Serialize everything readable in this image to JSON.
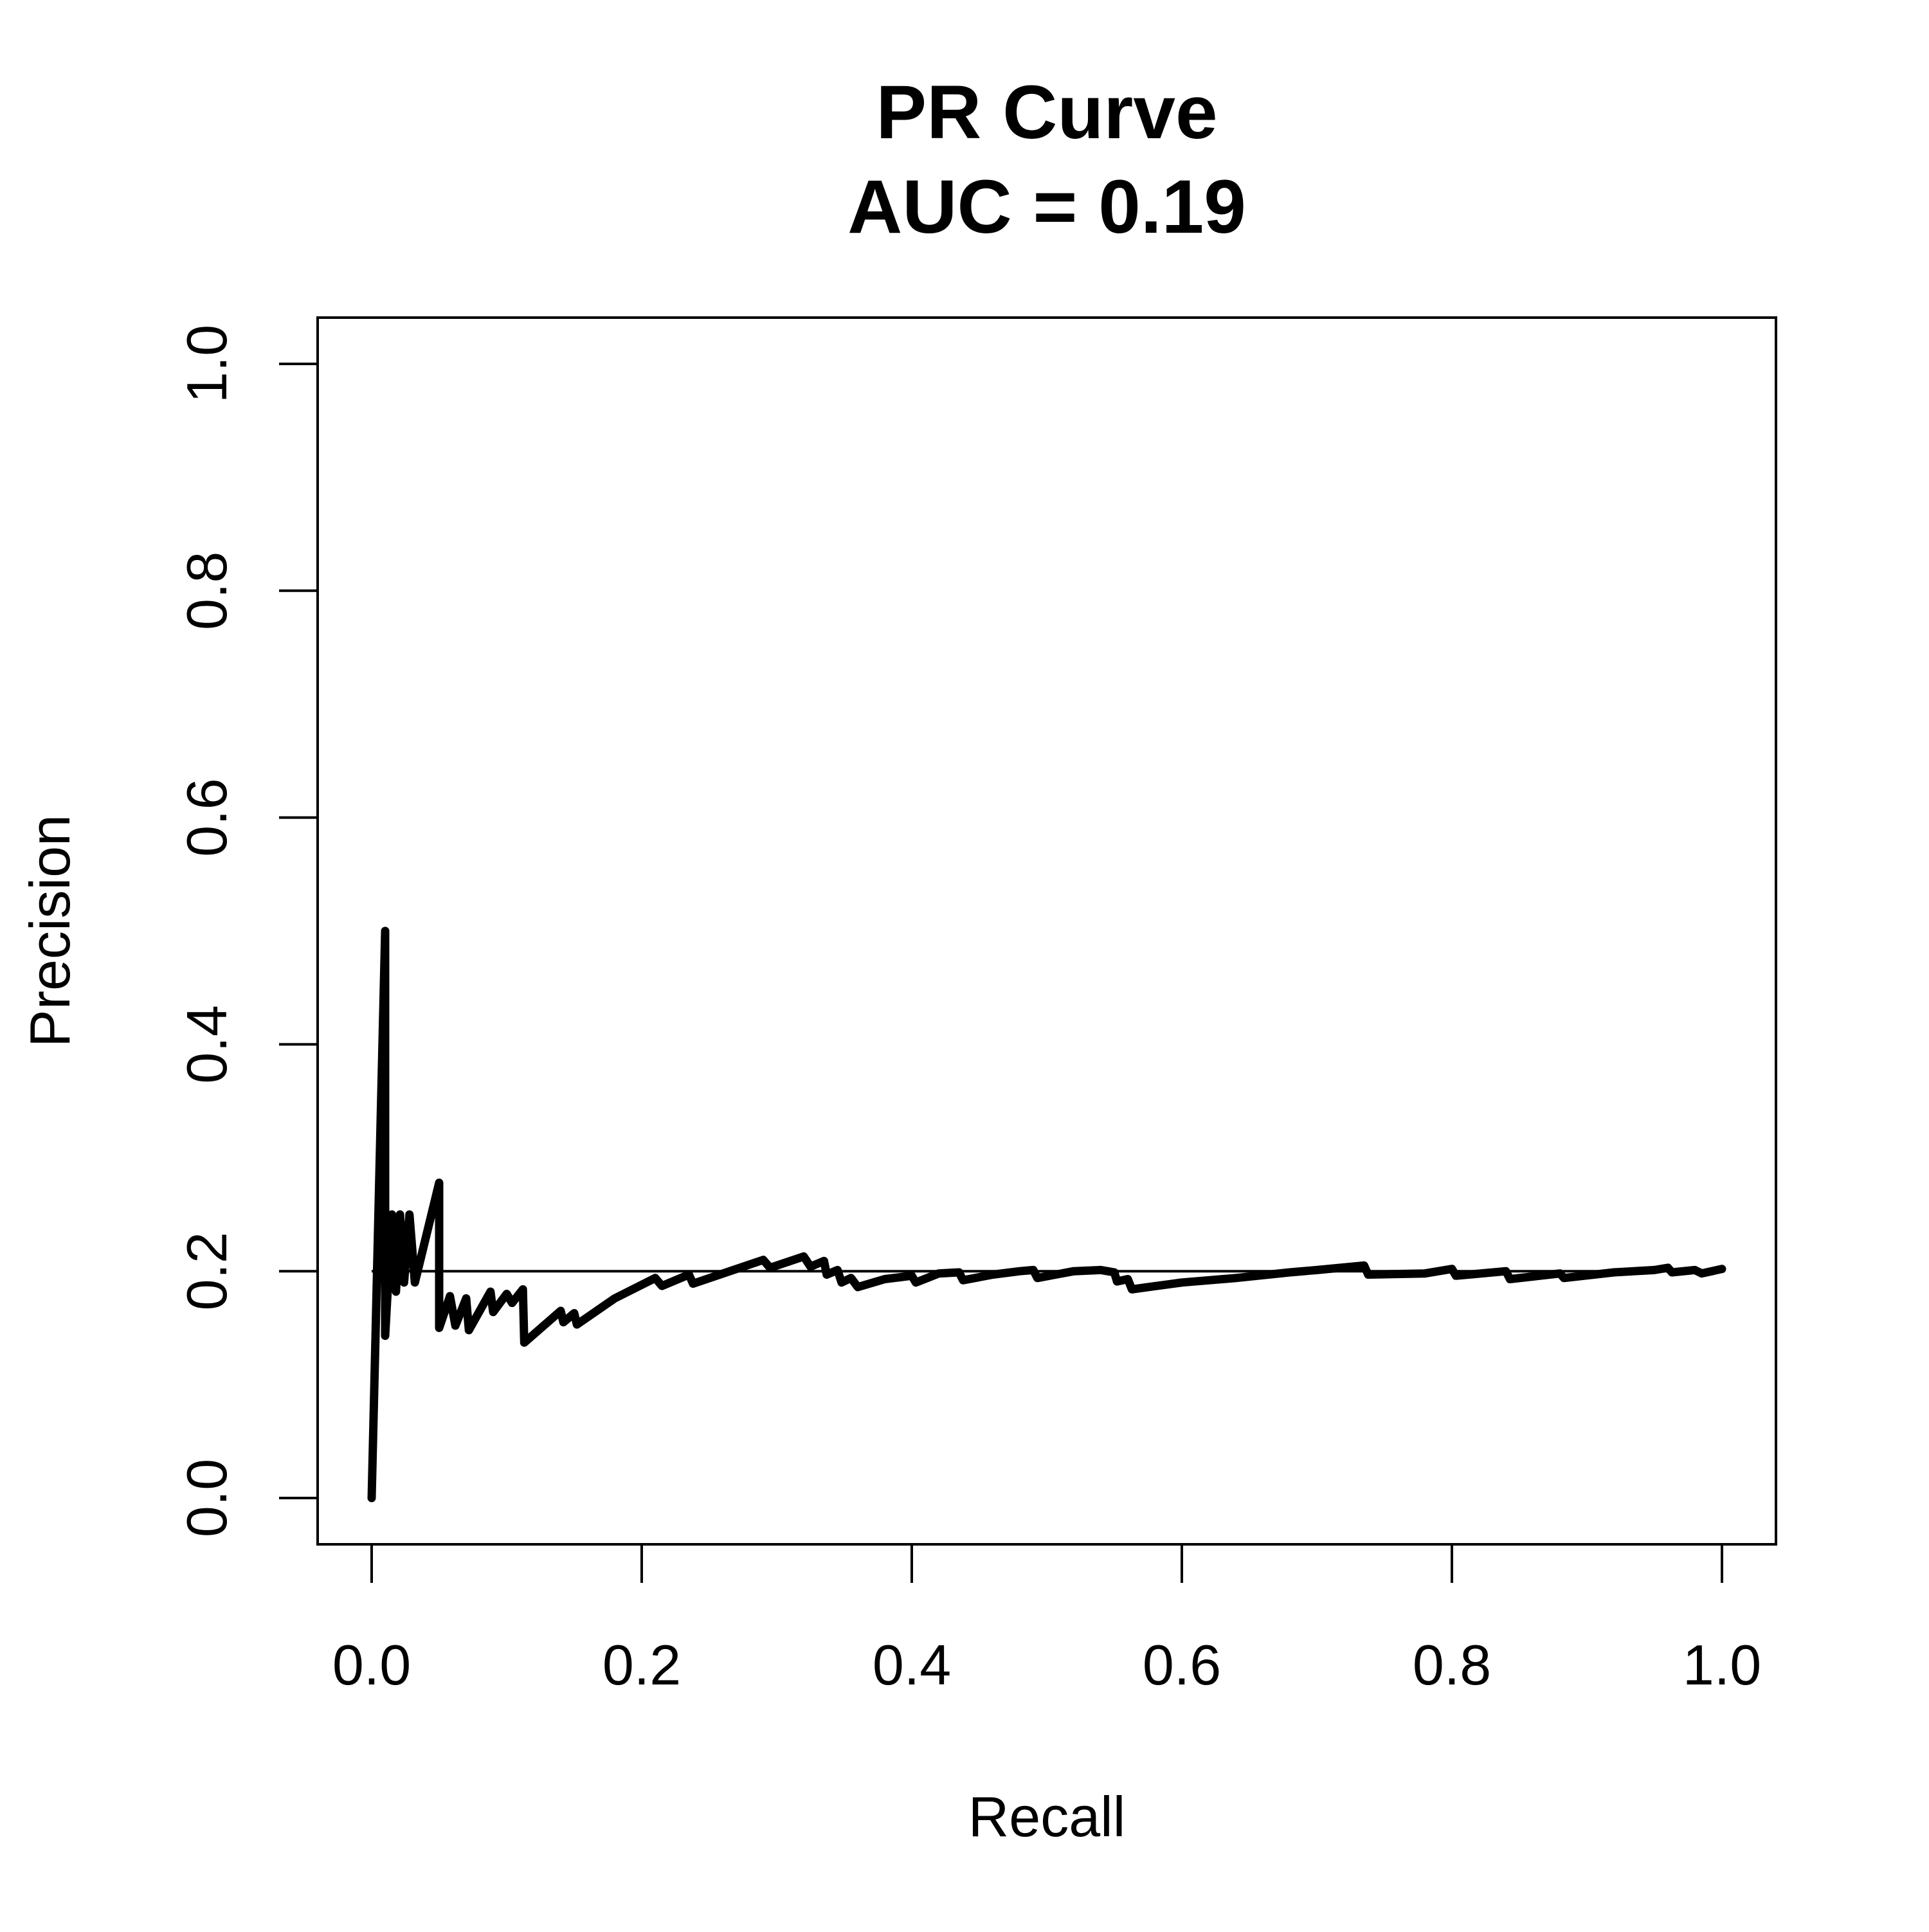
{
  "chart_data": {
    "type": "line",
    "title": "PR Curve",
    "subtitle": "AUC = 0.19",
    "xlabel": "Recall",
    "ylabel": "Precision",
    "xlim": [
      0,
      1
    ],
    "ylim": [
      0,
      1
    ],
    "xticks": [
      "0.0",
      "0.2",
      "0.4",
      "0.6",
      "0.8",
      "1.0"
    ],
    "yticks": [
      "0.0",
      "0.2",
      "0.4",
      "0.6",
      "0.8",
      "1.0"
    ],
    "grid": false,
    "legend": "none",
    "reference_line": {
      "y": 0.2
    },
    "series": [
      {
        "color": "#000000",
        "points": [
          [
            0.0,
            0.0
          ],
          [
            0.01,
            0.5
          ],
          [
            0.01,
            0.143
          ],
          [
            0.015,
            0.25
          ],
          [
            0.018,
            0.182
          ],
          [
            0.021,
            0.25
          ],
          [
            0.024,
            0.19
          ],
          [
            0.028,
            0.25
          ],
          [
            0.032,
            0.19
          ],
          [
            0.05,
            0.278
          ],
          [
            0.05,
            0.15
          ],
          [
            0.058,
            0.178
          ],
          [
            0.062,
            0.152
          ],
          [
            0.07,
            0.176
          ],
          [
            0.072,
            0.148
          ],
          [
            0.088,
            0.182
          ],
          [
            0.09,
            0.164
          ],
          [
            0.1,
            0.18
          ],
          [
            0.104,
            0.172
          ],
          [
            0.112,
            0.184
          ],
          [
            0.113,
            0.137
          ],
          [
            0.14,
            0.165
          ],
          [
            0.142,
            0.155
          ],
          [
            0.15,
            0.163
          ],
          [
            0.152,
            0.153
          ],
          [
            0.18,
            0.176
          ],
          [
            0.21,
            0.194
          ],
          [
            0.215,
            0.187
          ],
          [
            0.235,
            0.197
          ],
          [
            0.238,
            0.189
          ],
          [
            0.29,
            0.21
          ],
          [
            0.295,
            0.203
          ],
          [
            0.32,
            0.213
          ],
          [
            0.325,
            0.204
          ],
          [
            0.335,
            0.209
          ],
          [
            0.337,
            0.197
          ],
          [
            0.345,
            0.201
          ],
          [
            0.348,
            0.19
          ],
          [
            0.355,
            0.194
          ],
          [
            0.36,
            0.186
          ],
          [
            0.38,
            0.193
          ],
          [
            0.4,
            0.196
          ],
          [
            0.403,
            0.19
          ],
          [
            0.42,
            0.198
          ],
          [
            0.435,
            0.199
          ],
          [
            0.438,
            0.192
          ],
          [
            0.46,
            0.197
          ],
          [
            0.48,
            0.2
          ],
          [
            0.49,
            0.201
          ],
          [
            0.493,
            0.194
          ],
          [
            0.52,
            0.2
          ],
          [
            0.54,
            0.201
          ],
          [
            0.55,
            0.199
          ],
          [
            0.552,
            0.191
          ],
          [
            0.56,
            0.193
          ],
          [
            0.563,
            0.184
          ],
          [
            0.6,
            0.19
          ],
          [
            0.64,
            0.194
          ],
          [
            0.68,
            0.199
          ],
          [
            0.7,
            0.201
          ],
          [
            0.735,
            0.205
          ],
          [
            0.738,
            0.197
          ],
          [
            0.78,
            0.198
          ],
          [
            0.8,
            0.202
          ],
          [
            0.803,
            0.196
          ],
          [
            0.84,
            0.2
          ],
          [
            0.843,
            0.193
          ],
          [
            0.88,
            0.198
          ],
          [
            0.883,
            0.194
          ],
          [
            0.92,
            0.199
          ],
          [
            0.95,
            0.201
          ],
          [
            0.96,
            0.203
          ],
          [
            0.963,
            0.199
          ],
          [
            0.98,
            0.201
          ],
          [
            0.985,
            0.198
          ],
          [
            1.0,
            0.202
          ]
        ]
      }
    ]
  }
}
